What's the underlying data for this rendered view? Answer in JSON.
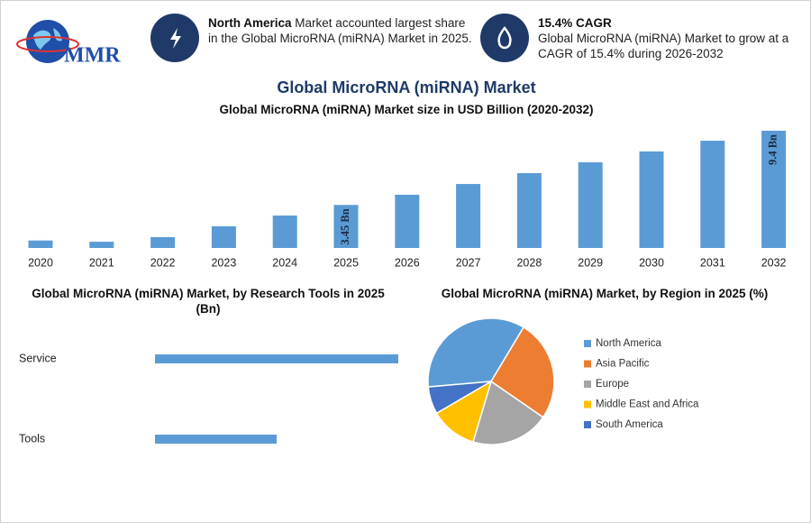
{
  "header": {
    "logo": "MMR",
    "callouts": [
      {
        "highlight": "North America",
        "text": "Market accounted largest share in the Global MicroRNA (miRNA) Market in 2025."
      },
      {
        "highlight": "15.4% CAGR",
        "text": "Global MicroRNA (miRNA) Market to grow at a CAGR of 15.4% during 2026-2032"
      }
    ]
  },
  "title": "Global MicroRNA (miRNA) Market",
  "chart_data": [
    {
      "type": "bar",
      "title": "Global MicroRNA (miRNA) Market size in USD Billion (2020-2032)",
      "categories": [
        "2020",
        "2021",
        "2022",
        "2023",
        "2024",
        "2025",
        "2026",
        "2027",
        "2028",
        "2029",
        "2030",
        "2031",
        "2032"
      ],
      "values": [
        0.6,
        0.5,
        0.87,
        1.74,
        2.6,
        3.45,
        4.27,
        5.13,
        6.0,
        6.87,
        7.74,
        8.6,
        9.4
      ],
      "value_labels": [
        null,
        null,
        null,
        null,
        null,
        "3.45 Bn",
        null,
        null,
        null,
        null,
        null,
        null,
        "9.4 Bn"
      ],
      "color": "#5b9bd5"
    },
    {
      "type": "bar",
      "orientation": "horizontal",
      "title": "Global MicroRNA (miRNA) Market, by Research Tools in 2025 (Bn)",
      "categories": [
        "Service",
        "Tools"
      ],
      "values": [
        2.3,
        1.15
      ],
      "color": "#5b9bd5"
    },
    {
      "type": "pie",
      "title": "Global MicroRNA (miRNA) Market, by Region in 2025 (%)",
      "categories": [
        "North America",
        "Asia Pacific",
        "Europe",
        "Middle East and Africa",
        "South America"
      ],
      "values": [
        35,
        26,
        20,
        12,
        7
      ],
      "colors": [
        "#5b9bd5",
        "#ed7d31",
        "#a5a5a5",
        "#ffc000",
        "#4472c4"
      ]
    }
  ]
}
